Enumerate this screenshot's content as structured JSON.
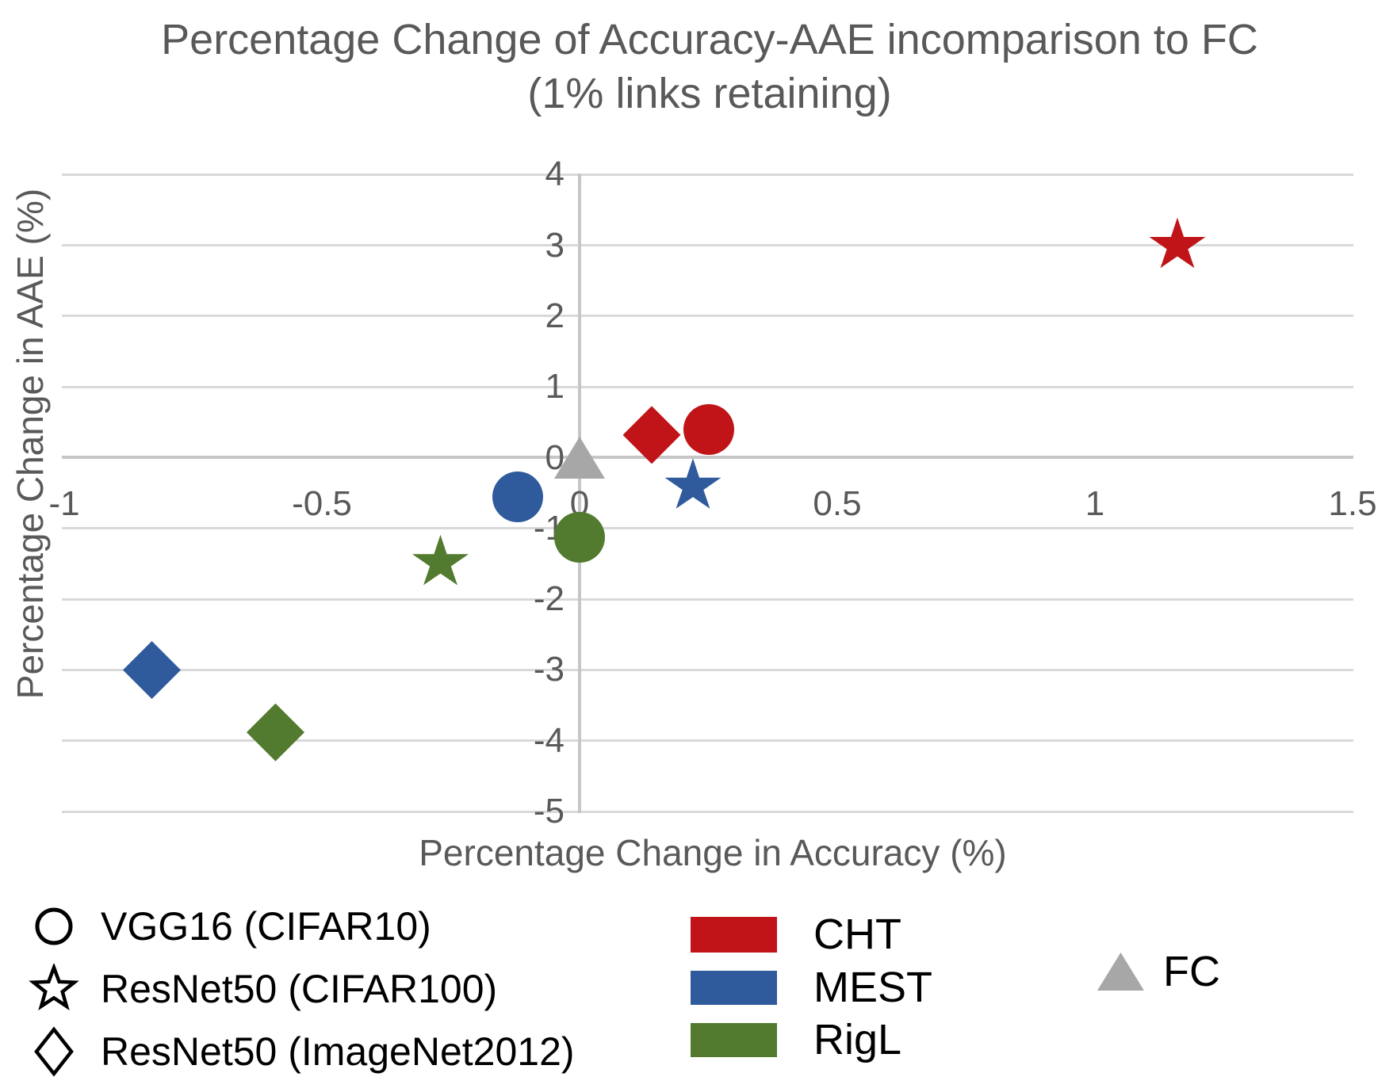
{
  "title": {
    "line1": "Percentage Change of Accuracy-AAE incomparison to FC",
    "line2": "(1% links retaining)"
  },
  "axes": {
    "x_title": "Percentage Change in Accuracy (%)",
    "y_title": "Percentage Change in AAE (%)"
  },
  "chart_data": {
    "type": "scatter",
    "title": "Percentage Change of Accuracy-AAE incomparison to FC (1% links retaining)",
    "xlabel": "Percentage Change in Accuracy (%)",
    "ylabel": "Percentage Change in AAE (%)",
    "xlim": [
      -1,
      1.5
    ],
    "ylim": [
      -5,
      4
    ],
    "grid": "horizontal-only",
    "legend_position": "bottom",
    "xticks": [
      {
        "v": -1,
        "label": "-1"
      },
      {
        "v": -0.5,
        "label": "-0.5"
      },
      {
        "v": 0,
        "label": "0"
      },
      {
        "v": 0.5,
        "label": "0.5"
      },
      {
        "v": 1,
        "label": "1"
      },
      {
        "v": 1.5,
        "label": "1.5"
      }
    ],
    "yticks": [
      {
        "v": 4,
        "label": "4"
      },
      {
        "v": 3,
        "label": "3"
      },
      {
        "v": 2,
        "label": "2"
      },
      {
        "v": 1,
        "label": "1"
      },
      {
        "v": 0,
        "label": "0"
      },
      {
        "v": -1,
        "label": "-1"
      },
      {
        "v": -2,
        "label": "-2"
      },
      {
        "v": -3,
        "label": "-3"
      },
      {
        "v": -4,
        "label": "-4"
      },
      {
        "v": -5,
        "label": "-5"
      }
    ],
    "series": [
      {
        "name": "FC",
        "color": "#A7A7A7",
        "points": [
          {
            "marker": "triangle",
            "model": "FC baseline",
            "x": 0,
            "y": 0
          }
        ]
      },
      {
        "name": "RigL",
        "color": "#527B2F",
        "points": [
          {
            "marker": "circle",
            "model": "VGG16 (CIFAR10)",
            "x": 0.0,
            "y": -1.13
          },
          {
            "marker": "star",
            "model": "ResNet50 (CIFAR100)",
            "x": -0.27,
            "y": -1.48
          },
          {
            "marker": "diamond",
            "model": "ResNet50 (ImageNet2012)",
            "x": -0.59,
            "y": -3.88
          }
        ]
      },
      {
        "name": "MEST",
        "color": "#2F5A9C",
        "points": [
          {
            "marker": "circle",
            "model": "VGG16 (CIFAR10)",
            "x": -0.12,
            "y": -0.55
          },
          {
            "marker": "star",
            "model": "ResNet50 (CIFAR100)",
            "x": 0.22,
            "y": -0.4
          },
          {
            "marker": "diamond",
            "model": "ResNet50 (ImageNet2012)",
            "x": -0.83,
            "y": -3.0
          }
        ]
      },
      {
        "name": "CHT",
        "color": "#C01418",
        "points": [
          {
            "marker": "circle",
            "model": "VGG16 (CIFAR10)",
            "x": 0.25,
            "y": 0.4
          },
          {
            "marker": "star",
            "model": "ResNet50 (CIFAR100)",
            "x": 1.16,
            "y": 3.0
          },
          {
            "marker": "diamond",
            "model": "ResNet50 (ImageNet2012)",
            "x": 0.14,
            "y": 0.32
          }
        ]
      }
    ]
  },
  "legend_markers": [
    {
      "marker": "circle",
      "label": "VGG16 (CIFAR10)"
    },
    {
      "marker": "star",
      "label": "ResNet50 (CIFAR100)"
    },
    {
      "marker": "diamond",
      "label": "ResNet50 (ImageNet2012)"
    }
  ],
  "legend_series": [
    {
      "name": "CHT",
      "color": "#C01418"
    },
    {
      "name": "MEST",
      "color": "#2F5A9C"
    },
    {
      "name": "RigL",
      "color": "#527B2F"
    }
  ],
  "legend_fc": {
    "name": "FC",
    "color": "#A7A7A7"
  },
  "colors": {
    "red": "#C01418",
    "blue": "#2F5A9C",
    "green": "#527B2F",
    "gray_marker": "#A7A7A7",
    "gridline": "#D9D9D9",
    "axis_line": "#C6C6C6",
    "text_gray": "#595959",
    "legend_text": "#000000",
    "background": "#FFFFFF"
  }
}
